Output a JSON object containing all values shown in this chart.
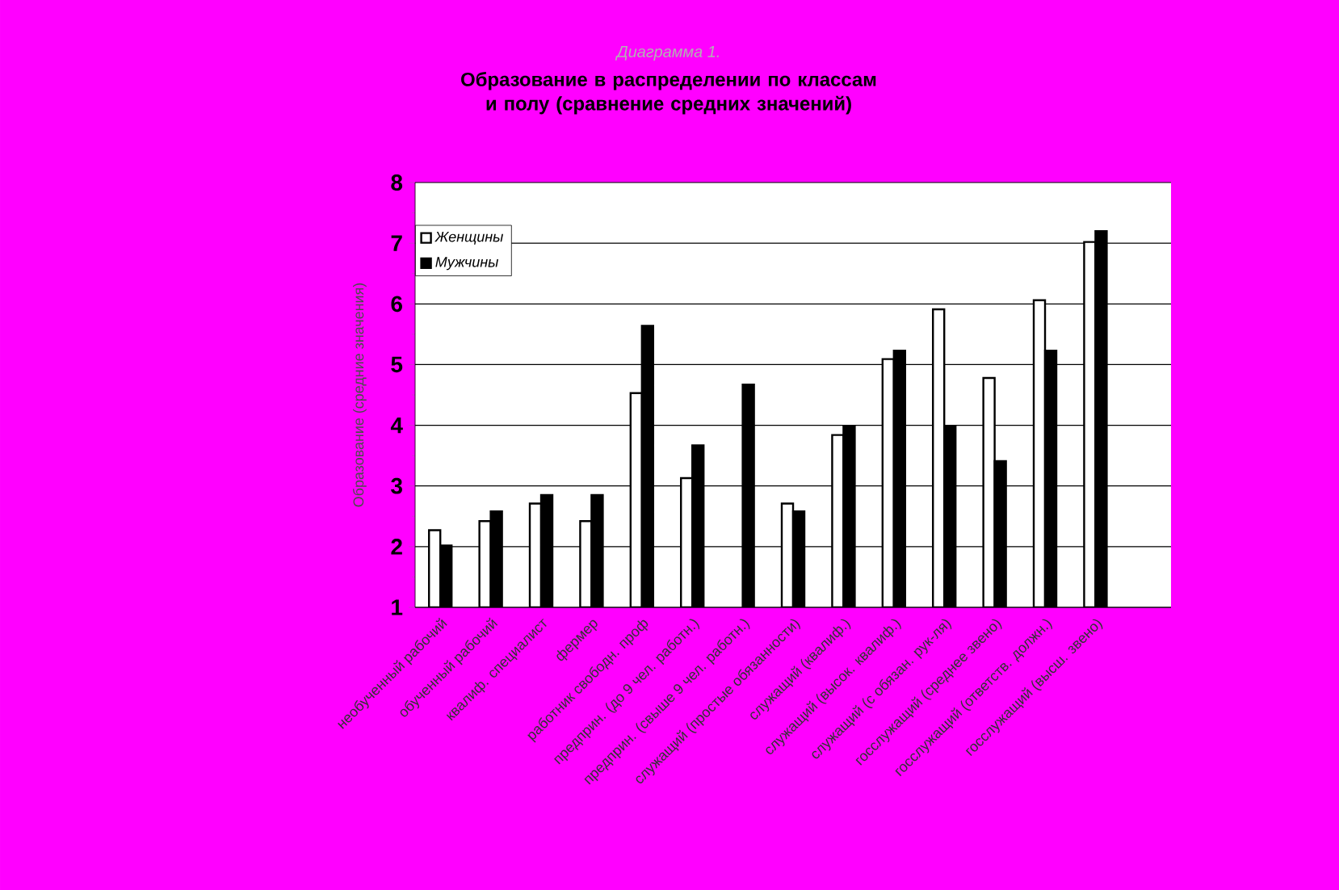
{
  "chart_data": {
    "type": "bar",
    "subtitle": "Диаграмма 1.",
    "title": "Образование в распределении по классам и полу (сравнение средних значений)",
    "ylabel": "Образование (средние значения)",
    "categories": [
      "необученный рабочий",
      "обученный рабочий",
      "квалиф. специалист",
      "фермер",
      "работник свободн. проф",
      "предприн. (до 9 чел. работн.)",
      "предприн. (свыше 9 чел. работн.)",
      "служащий (простые обязанности)",
      "служащий (квалиф.)",
      "служащий (высок. квалиф.)",
      "служащий (с обязан. рук-ля)",
      "госслужащий (среднее звено)",
      "госслужащий (ответств. должн.)",
      "госслужащий (высш. звено)",
      null
    ],
    "series": [
      {
        "name": "Женщины",
        "color": "#ffffff",
        "values": [
          2.27,
          2.42,
          2.71,
          2.42,
          4.53,
          3.13,
          null,
          2.71,
          3.84,
          5.09,
          5.91,
          4.78,
          6.06,
          7.02,
          null
        ]
      },
      {
        "name": "Мужчины",
        "color": "#000000",
        "values": [
          2.02,
          2.58,
          2.85,
          2.85,
          5.64,
          3.67,
          4.67,
          2.58,
          3.98,
          5.23,
          3.98,
          3.41,
          5.23,
          7.2,
          null
        ]
      }
    ],
    "ylim": [
      1,
      8
    ],
    "yticks": [
      1,
      2,
      3,
      4,
      5,
      6,
      7,
      8
    ],
    "grid": "y",
    "legend": "top left"
  }
}
